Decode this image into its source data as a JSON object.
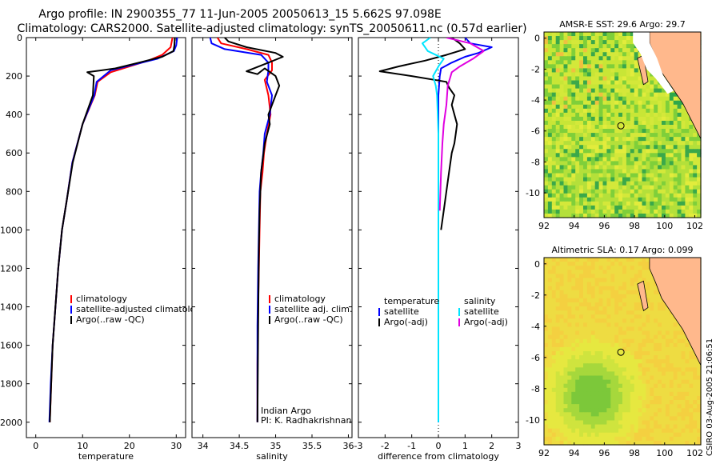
{
  "title_line1": "Argo profile: IN 2900355_77 11-Jun-2005 20050613_15 5.662S 97.098E",
  "title_line2": "Climatology: CARS2000. Satellite-adjusted climatology: synTS_20050611.nc (0.57d earlier)",
  "side_stamp": "CSIRO 03-Aug-2005 21:06:51",
  "colors": {
    "climatology": "#ff0000",
    "satellite": "#0000ff",
    "argo": "#000000",
    "sal_sat": "#00e5ff",
    "sal_argo": "#e000e0",
    "land": "#ffb88c"
  },
  "chart_data": [
    {
      "id": "temperature",
      "type": "line",
      "xlabel": "temperature",
      "xlim": [
        -2,
        32
      ],
      "ylim": [
        2080,
        0
      ],
      "xticks": [
        "0",
        "10",
        "20",
        "30"
      ],
      "yticks": [
        "0",
        "200",
        "400",
        "600",
        "800",
        "1000",
        "1200",
        "1400",
        "1600",
        "1800",
        "2000"
      ],
      "legend": [
        "climatology",
        "satellite-adjusted climatology",
        "Argo(..raw -QC)"
      ],
      "series": [
        {
          "name": "climatology",
          "color": "#ff0000",
          "x": [
            29.2,
            28.8,
            27,
            24,
            20,
            16,
            13.2,
            12.6,
            10,
            7.8,
            6.6,
            5.6,
            4.8,
            4.2,
            3.6,
            3.3,
            3.0
          ],
          "y": [
            0,
            50,
            90,
            120,
            150,
            180,
            230,
            300,
            450,
            650,
            850,
            1000,
            1200,
            1400,
            1600,
            1800,
            2000
          ]
        },
        {
          "name": "satellite-adjusted climatology",
          "color": "#0000ff",
          "x": [
            30.2,
            30.0,
            29.5,
            26,
            21,
            16,
            13.0,
            12.5,
            10,
            7.8,
            6.6,
            5.6,
            4.8,
            4.2,
            3.6,
            3.2,
            2.9
          ],
          "y": [
            0,
            40,
            70,
            110,
            140,
            170,
            230,
            300,
            450,
            650,
            850,
            1000,
            1200,
            1400,
            1600,
            1800,
            2000
          ]
        },
        {
          "name": "Argo(..raw -QC)",
          "color": "#000000",
          "x": [
            29.7,
            29.6,
            29.4,
            27,
            22,
            17,
            11.0,
            12.4,
            12.2,
            10,
            7.9,
            6.6,
            5.6,
            4.8,
            4.2,
            3.6,
            3.3,
            3.0
          ],
          "y": [
            0,
            40,
            70,
            100,
            130,
            160,
            180,
            200,
            300,
            450,
            650,
            850,
            1000,
            1200,
            1400,
            1600,
            1800,
            2000
          ]
        }
      ]
    },
    {
      "id": "salinity",
      "type": "line",
      "xlabel": "salinity",
      "xlim": [
        33.85,
        36.05
      ],
      "ylim": [
        2080,
        0
      ],
      "xticks": [
        "34",
        "34.5",
        "35",
        "35.5",
        "36"
      ],
      "xtick_values": [
        34,
        34.5,
        35,
        35.5,
        36
      ],
      "legend": [
        "climatology",
        "satellite adj. clim.",
        "Argo(..raw -QC)"
      ],
      "annotation": [
        "Indian Argo",
        "PI: K. Radhakrishnan"
      ],
      "series": [
        {
          "name": "climatology",
          "color": "#ff0000",
          "x": [
            34.2,
            34.25,
            34.6,
            34.9,
            34.95,
            34.95,
            34.85,
            34.9,
            34.93,
            34.88,
            34.84,
            34.82,
            34.79,
            34.78,
            34.77,
            34.76,
            34.75,
            34.75
          ],
          "y": [
            0,
            30,
            60,
            90,
            130,
            170,
            220,
            300,
            400,
            500,
            600,
            700,
            800,
            1000,
            1200,
            1400,
            1700,
            2000
          ]
        },
        {
          "name": "satellite adj. clim.",
          "color": "#0000ff",
          "x": [
            34.1,
            34.12,
            34.3,
            34.8,
            34.9,
            34.9,
            34.88,
            34.95,
            34.92,
            34.85,
            34.83,
            34.8,
            34.78,
            34.77,
            34.76,
            34.75,
            34.75
          ],
          "y": [
            0,
            30,
            60,
            90,
            130,
            170,
            230,
            300,
            400,
            500,
            600,
            700,
            800,
            1000,
            1200,
            1500,
            2000
          ]
        },
        {
          "name": "Argo(..raw -QC)",
          "color": "#000000",
          "x": [
            34.3,
            34.35,
            34.6,
            35.0,
            35.1,
            34.9,
            34.6,
            34.75,
            34.85,
            35.0,
            35.05,
            35.0,
            34.95,
            34.9,
            34.92,
            34.85,
            34.8,
            34.78,
            34.77,
            34.76,
            34.75
          ],
          "y": [
            0,
            20,
            50,
            80,
            100,
            130,
            175,
            190,
            160,
            200,
            250,
            300,
            350,
            400,
            450,
            550,
            700,
            900,
            1100,
            1500,
            2000
          ]
        }
      ]
    },
    {
      "id": "difference",
      "type": "line",
      "xlabel": "difference from climatology",
      "xlim": [
        -3,
        3
      ],
      "ylim": [
        2080,
        0
      ],
      "xticks": [
        "-3",
        "-2",
        "-1",
        "0",
        "1",
        "2",
        "3"
      ],
      "xtick_values": [
        -3,
        -2,
        -1,
        0,
        1,
        2,
        3
      ],
      "legend_left": [
        "temperature",
        "satellite",
        "Argo(-adj)"
      ],
      "legend_right": [
        "salinity",
        "satellite",
        "Argo(-adj)"
      ],
      "series": [
        {
          "name": "temperature satellite",
          "color": "#0000ff",
          "x": [
            1.0,
            1.2,
            2.0,
            1.5,
            1.0,
            0.5,
            0.1,
            0.05,
            0.0,
            0.0,
            0.0,
            0.0
          ],
          "y": [
            0,
            30,
            50,
            80,
            100,
            130,
            160,
            200,
            300,
            500,
            1000,
            2000
          ]
        },
        {
          "name": "temperature Argo(-adj)",
          "color": "#000000",
          "x": [
            0.5,
            0.8,
            1.0,
            0.3,
            -0.5,
            -1.5,
            -2.2,
            -1.0,
            0.3,
            0.4,
            0.6,
            0.5,
            0.6,
            0.7,
            0.65,
            0.6,
            0.5,
            0.4,
            0.3,
            0.2,
            0.1
          ],
          "y": [
            0,
            30,
            60,
            90,
            120,
            150,
            175,
            200,
            230,
            260,
            300,
            350,
            400,
            450,
            500,
            550,
            600,
            700,
            800,
            900,
            1000
          ]
        },
        {
          "name": "salinity satellite",
          "color": "#00e5ff",
          "x": [
            -0.3,
            -0.6,
            -0.4,
            0.2,
            0.0,
            -0.2,
            -0.1,
            -0.05,
            0.0,
            0.0,
            0.0
          ],
          "y": [
            0,
            30,
            70,
            110,
            150,
            200,
            250,
            300,
            500,
            1000,
            2000
          ]
        },
        {
          "name": "salinity Argo(-adj)",
          "color": "#e000e0",
          "x": [
            0.3,
            1.2,
            1.7,
            1.3,
            0.8,
            0.5,
            0.35,
            0.3,
            0.2,
            0.15,
            0.1,
            0.05
          ],
          "y": [
            0,
            30,
            70,
            110,
            150,
            180,
            250,
            350,
            450,
            550,
            700,
            900
          ]
        }
      ]
    }
  ],
  "maps": [
    {
      "id": "sst",
      "title": "AMSR-E SST: 29.6 Argo: 29.7",
      "xticks": [
        "92",
        "94",
        "96",
        "98",
        "100",
        "102"
      ],
      "yticks": [
        "0",
        "-2",
        "-4",
        "-6",
        "-8",
        "-10"
      ],
      "argo_lon": 97.1,
      "argo_lat": -5.66
    },
    {
      "id": "sla",
      "title": "Altimetric SLA: 0.17 Argo: 0.099",
      "xticks": [
        "92",
        "94",
        "96",
        "98",
        "100",
        "102"
      ],
      "yticks": [
        "0",
        "-2",
        "-4",
        "-6",
        "-8",
        "-10"
      ],
      "argo_lon": 97.1,
      "argo_lat": -5.66
    }
  ]
}
